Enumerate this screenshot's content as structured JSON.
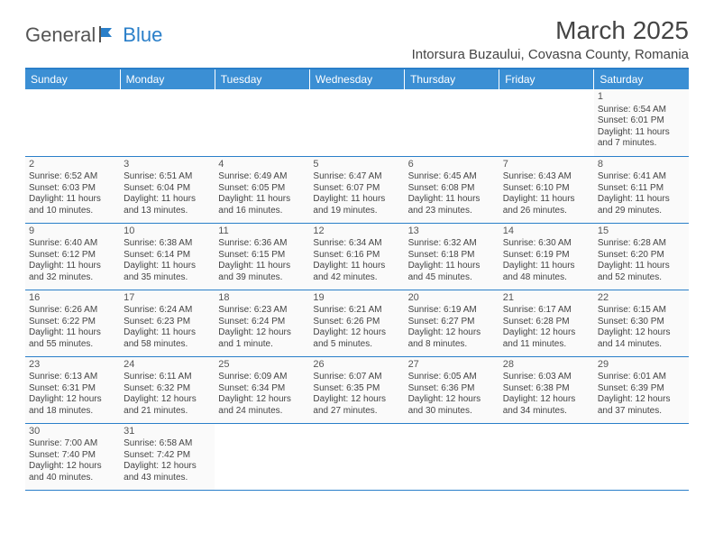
{
  "logo": {
    "text1": "General",
    "text2": "Blue"
  },
  "title": "March 2025",
  "location": "Intorsura Buzaului, Covasna County, Romania",
  "colors": {
    "header_bg": "#3b8fd4",
    "accent": "#2a7fc9",
    "text": "#444444",
    "cell_bg": "#fafafa"
  },
  "weekdays": [
    "Sunday",
    "Monday",
    "Tuesday",
    "Wednesday",
    "Thursday",
    "Friday",
    "Saturday"
  ],
  "weeks": [
    [
      null,
      null,
      null,
      null,
      null,
      null,
      {
        "n": "1",
        "sr": "6:54 AM",
        "ss": "6:01 PM",
        "dl": "11 hours and 7 minutes."
      }
    ],
    [
      {
        "n": "2",
        "sr": "6:52 AM",
        "ss": "6:03 PM",
        "dl": "11 hours and 10 minutes."
      },
      {
        "n": "3",
        "sr": "6:51 AM",
        "ss": "6:04 PM",
        "dl": "11 hours and 13 minutes."
      },
      {
        "n": "4",
        "sr": "6:49 AM",
        "ss": "6:05 PM",
        "dl": "11 hours and 16 minutes."
      },
      {
        "n": "5",
        "sr": "6:47 AM",
        "ss": "6:07 PM",
        "dl": "11 hours and 19 minutes."
      },
      {
        "n": "6",
        "sr": "6:45 AM",
        "ss": "6:08 PM",
        "dl": "11 hours and 23 minutes."
      },
      {
        "n": "7",
        "sr": "6:43 AM",
        "ss": "6:10 PM",
        "dl": "11 hours and 26 minutes."
      },
      {
        "n": "8",
        "sr": "6:41 AM",
        "ss": "6:11 PM",
        "dl": "11 hours and 29 minutes."
      }
    ],
    [
      {
        "n": "9",
        "sr": "6:40 AM",
        "ss": "6:12 PM",
        "dl": "11 hours and 32 minutes."
      },
      {
        "n": "10",
        "sr": "6:38 AM",
        "ss": "6:14 PM",
        "dl": "11 hours and 35 minutes."
      },
      {
        "n": "11",
        "sr": "6:36 AM",
        "ss": "6:15 PM",
        "dl": "11 hours and 39 minutes."
      },
      {
        "n": "12",
        "sr": "6:34 AM",
        "ss": "6:16 PM",
        "dl": "11 hours and 42 minutes."
      },
      {
        "n": "13",
        "sr": "6:32 AM",
        "ss": "6:18 PM",
        "dl": "11 hours and 45 minutes."
      },
      {
        "n": "14",
        "sr": "6:30 AM",
        "ss": "6:19 PM",
        "dl": "11 hours and 48 minutes."
      },
      {
        "n": "15",
        "sr": "6:28 AM",
        "ss": "6:20 PM",
        "dl": "11 hours and 52 minutes."
      }
    ],
    [
      {
        "n": "16",
        "sr": "6:26 AM",
        "ss": "6:22 PM",
        "dl": "11 hours and 55 minutes."
      },
      {
        "n": "17",
        "sr": "6:24 AM",
        "ss": "6:23 PM",
        "dl": "11 hours and 58 minutes."
      },
      {
        "n": "18",
        "sr": "6:23 AM",
        "ss": "6:24 PM",
        "dl": "12 hours and 1 minute."
      },
      {
        "n": "19",
        "sr": "6:21 AM",
        "ss": "6:26 PM",
        "dl": "12 hours and 5 minutes."
      },
      {
        "n": "20",
        "sr": "6:19 AM",
        "ss": "6:27 PM",
        "dl": "12 hours and 8 minutes."
      },
      {
        "n": "21",
        "sr": "6:17 AM",
        "ss": "6:28 PM",
        "dl": "12 hours and 11 minutes."
      },
      {
        "n": "22",
        "sr": "6:15 AM",
        "ss": "6:30 PM",
        "dl": "12 hours and 14 minutes."
      }
    ],
    [
      {
        "n": "23",
        "sr": "6:13 AM",
        "ss": "6:31 PM",
        "dl": "12 hours and 18 minutes."
      },
      {
        "n": "24",
        "sr": "6:11 AM",
        "ss": "6:32 PM",
        "dl": "12 hours and 21 minutes."
      },
      {
        "n": "25",
        "sr": "6:09 AM",
        "ss": "6:34 PM",
        "dl": "12 hours and 24 minutes."
      },
      {
        "n": "26",
        "sr": "6:07 AM",
        "ss": "6:35 PM",
        "dl": "12 hours and 27 minutes."
      },
      {
        "n": "27",
        "sr": "6:05 AM",
        "ss": "6:36 PM",
        "dl": "12 hours and 30 minutes."
      },
      {
        "n": "28",
        "sr": "6:03 AM",
        "ss": "6:38 PM",
        "dl": "12 hours and 34 minutes."
      },
      {
        "n": "29",
        "sr": "6:01 AM",
        "ss": "6:39 PM",
        "dl": "12 hours and 37 minutes."
      }
    ],
    [
      {
        "n": "30",
        "sr": "7:00 AM",
        "ss": "7:40 PM",
        "dl": "12 hours and 40 minutes."
      },
      {
        "n": "31",
        "sr": "6:58 AM",
        "ss": "7:42 PM",
        "dl": "12 hours and 43 minutes."
      },
      null,
      null,
      null,
      null,
      null
    ]
  ],
  "labels": {
    "sunrise": "Sunrise:",
    "sunset": "Sunset:",
    "daylight": "Daylight:"
  }
}
